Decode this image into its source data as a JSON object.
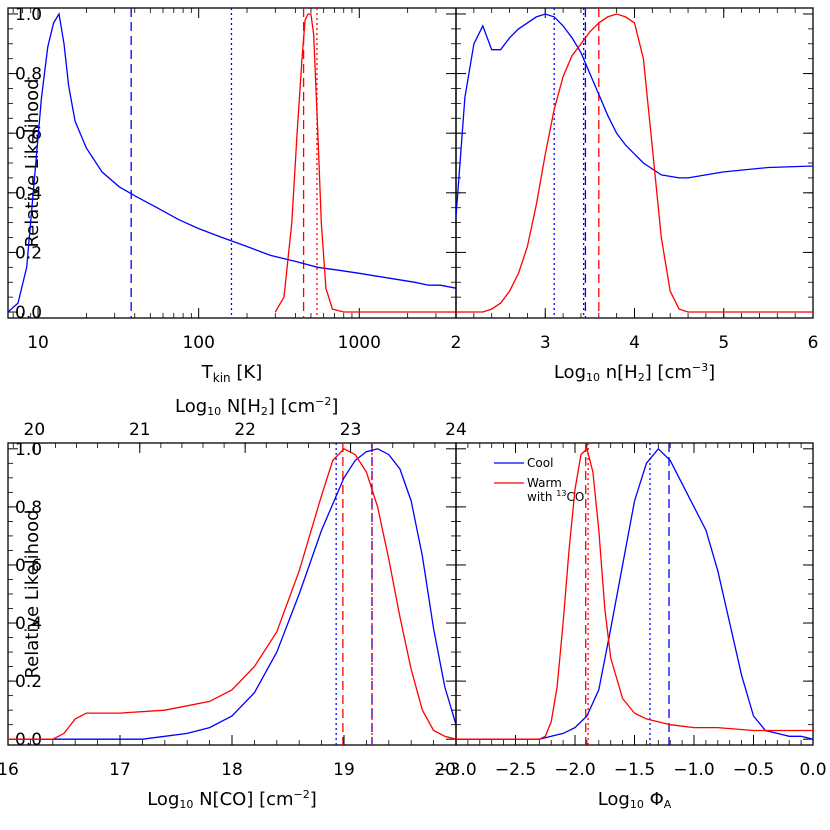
{
  "chart_data": [
    {
      "type": "line",
      "xscale": "log",
      "xlim": [
        6.5,
        4000
      ],
      "ylim": [
        -0.02,
        1.02
      ],
      "ylabel": "Relative Likelihood",
      "xlabel_main": "T",
      "xlabel_sub": "kin",
      "xlabel_unit": "[K]",
      "xticks": [
        10,
        100,
        1000
      ],
      "xtick_labels": [
        "10",
        "100",
        "1000"
      ],
      "yticks": [
        0.0,
        0.2,
        0.4,
        0.6,
        0.8,
        1.0
      ],
      "ytick_labels": [
        "0.0",
        "0.2",
        "0.4",
        "0.6",
        "0.8",
        "1.0"
      ],
      "series": [
        {
          "color": "#0000ff",
          "x": [
            6.5,
            7.5,
            8.5,
            9.5,
            10.5,
            11.5,
            12.5,
            13.5,
            14.5,
            15.5,
            17,
            20,
            25,
            32,
            40,
            55,
            75,
            100,
            140,
            200,
            280,
            400,
            550,
            750,
            1000,
            1300,
            1700,
            2200,
            2700,
            3200,
            4000
          ],
          "y": [
            0.0,
            0.03,
            0.15,
            0.45,
            0.72,
            0.89,
            0.97,
            1.0,
            0.9,
            0.76,
            0.64,
            0.55,
            0.47,
            0.42,
            0.39,
            0.35,
            0.31,
            0.28,
            0.25,
            0.22,
            0.19,
            0.17,
            0.15,
            0.14,
            0.13,
            0.12,
            0.11,
            0.1,
            0.09,
            0.09,
            0.08
          ]
        },
        {
          "color": "#ff0000",
          "x": [
            300,
            340,
            380,
            410,
            440,
            460,
            480,
            500,
            520,
            550,
            580,
            620,
            680,
            800,
            1000,
            4000
          ],
          "y": [
            0.0,
            0.05,
            0.3,
            0.6,
            0.85,
            0.98,
            1.0,
            1.0,
            0.93,
            0.62,
            0.3,
            0.08,
            0.01,
            0.0,
            0.0,
            0.0
          ]
        }
      ],
      "vlines": [
        {
          "x": 38,
          "color": "#0000ff",
          "style": "dashed"
        },
        {
          "x": 160,
          "color": "#0000ff",
          "style": "dotted"
        },
        {
          "x": 450,
          "color": "#ff0000",
          "style": "dashed"
        },
        {
          "x": 545,
          "color": "#ff0000",
          "style": "dotted"
        }
      ]
    },
    {
      "type": "line",
      "xscale": "linear",
      "xlim": [
        2.0,
        6.0
      ],
      "ylim": [
        -0.02,
        1.02
      ],
      "xlabel_main": "Log",
      "xlabel_sub": "10",
      "xlabel_rest": " n[H",
      "xlabel_sub2": "2",
      "xlabel_unit": "] [cm",
      "xlabel_sup": "−3",
      "xlabel_end": "]",
      "xticks": [
        2,
        3,
        4,
        5,
        6
      ],
      "xtick_labels": [
        "2",
        "3",
        "4",
        "5",
        "6"
      ],
      "series": [
        {
          "color": "#0000ff",
          "x": [
            2.0,
            2.1,
            2.2,
            2.3,
            2.4,
            2.5,
            2.6,
            2.7,
            2.8,
            2.9,
            3.0,
            3.1,
            3.2,
            3.3,
            3.4,
            3.5,
            3.6,
            3.7,
            3.8,
            3.9,
            4.0,
            4.1,
            4.2,
            4.3,
            4.4,
            4.5,
            4.6,
            4.8,
            5.0,
            5.5,
            6.0
          ],
          "y": [
            0.32,
            0.72,
            0.9,
            0.96,
            0.88,
            0.88,
            0.92,
            0.95,
            0.97,
            0.99,
            1.0,
            0.99,
            0.96,
            0.92,
            0.87,
            0.8,
            0.73,
            0.66,
            0.6,
            0.56,
            0.53,
            0.5,
            0.48,
            0.46,
            0.455,
            0.45,
            0.45,
            0.46,
            0.47,
            0.485,
            0.49
          ]
        },
        {
          "color": "#ff0000",
          "x": [
            2.0,
            2.3,
            2.4,
            2.5,
            2.6,
            2.7,
            2.8,
            2.9,
            3.0,
            3.1,
            3.2,
            3.3,
            3.4,
            3.5,
            3.6,
            3.7,
            3.8,
            3.9,
            4.0,
            4.1,
            4.2,
            4.3,
            4.4,
            4.5,
            4.6,
            6.0
          ],
          "y": [
            0.0,
            0.0,
            0.01,
            0.03,
            0.07,
            0.13,
            0.22,
            0.36,
            0.53,
            0.68,
            0.79,
            0.86,
            0.9,
            0.94,
            0.97,
            0.99,
            1.0,
            0.99,
            0.97,
            0.85,
            0.55,
            0.25,
            0.07,
            0.01,
            0.0,
            0.0
          ]
        }
      ],
      "vlines": [
        {
          "x": 3.1,
          "color": "#0000ff",
          "style": "dotted"
        },
        {
          "x": 3.45,
          "color": "#0000ff",
          "style": "dashed"
        },
        {
          "x": 3.43,
          "color": "#0000ff",
          "style": "dotted"
        },
        {
          "x": 3.6,
          "color": "#ff0000",
          "style": "dashed"
        }
      ]
    },
    {
      "type": "line",
      "xscale": "linear",
      "xlim": [
        16.0,
        20.0
      ],
      "ylim": [
        -0.02,
        1.02
      ],
      "ylabel": "Relative Likelihood",
      "xlabel_main": "Log",
      "xlabel_sub": "10",
      "xlabel_rest": " N[CO] [cm",
      "xlabel_sup": "−2",
      "xlabel_end": "]",
      "xticks": [
        16,
        17,
        18,
        19,
        20
      ],
      "xtick_labels": [
        "16",
        "17",
        "18",
        "19",
        "20"
      ],
      "top_axis": {
        "label_main": "Log",
        "label_sub": "10",
        "label_rest": " N[H",
        "label_sub2": "2",
        "label_unit": "] [cm",
        "label_sup": "−2",
        "label_end": "]",
        "xlim": [
          19.75,
          24.0
        ],
        "ticks": [
          20,
          21,
          22,
          23,
          24
        ],
        "tick_labels": [
          "20",
          "21",
          "22",
          "23",
          "24"
        ]
      },
      "series": [
        {
          "color": "#0000ff",
          "x": [
            16.0,
            17.2,
            17.4,
            17.6,
            17.8,
            18.0,
            18.2,
            18.4,
            18.6,
            18.8,
            19.0,
            19.1,
            19.2,
            19.3,
            19.4,
            19.5,
            19.6,
            19.7,
            19.8,
            19.9,
            20.0
          ],
          "y": [
            0.0,
            0.0,
            0.01,
            0.02,
            0.04,
            0.08,
            0.16,
            0.3,
            0.5,
            0.72,
            0.9,
            0.96,
            0.99,
            1.0,
            0.98,
            0.93,
            0.82,
            0.63,
            0.38,
            0.18,
            0.05
          ]
        },
        {
          "color": "#ff0000",
          "x": [
            16.0,
            16.4,
            16.5,
            16.6,
            16.7,
            17.0,
            17.4,
            17.8,
            18.0,
            18.2,
            18.4,
            18.6,
            18.8,
            18.9,
            19.0,
            19.1,
            19.2,
            19.3,
            19.4,
            19.5,
            19.6,
            19.7,
            19.8,
            19.9,
            20.0
          ],
          "y": [
            0.0,
            0.0,
            0.02,
            0.07,
            0.09,
            0.09,
            0.1,
            0.13,
            0.17,
            0.25,
            0.37,
            0.58,
            0.84,
            0.96,
            1.0,
            0.98,
            0.92,
            0.8,
            0.62,
            0.42,
            0.24,
            0.1,
            0.03,
            0.01,
            0.0
          ]
        }
      ],
      "vlines": [
        {
          "x": 18.93,
          "color": "#0000ff",
          "style": "dotted"
        },
        {
          "x": 19.25,
          "color": "#0000ff",
          "style": "dashed"
        },
        {
          "x": 18.99,
          "color": "#ff0000",
          "style": "dashed"
        },
        {
          "x": 19.25,
          "color": "#ff0000",
          "style": "dotted"
        }
      ]
    },
    {
      "type": "line",
      "xscale": "linear",
      "xlim": [
        -3.0,
        0.0
      ],
      "ylim": [
        -0.02,
        1.02
      ],
      "xlabel_main": "Log",
      "xlabel_sub": "10",
      "xlabel_rest": " Φ",
      "xlabel_sub2": "A",
      "xticks": [
        -3.0,
        -2.5,
        -2.0,
        -1.5,
        -1.0,
        -0.5,
        0.0
      ],
      "xtick_labels": [
        "−3.0",
        "−2.5",
        "−2.0",
        "−1.5",
        "−1.0",
        "−0.5",
        "0.0"
      ],
      "legend": {
        "position": "top-left",
        "entries": [
          {
            "label": "Cool",
            "color": "#0000ff"
          },
          {
            "label": "Warm",
            "label2_pre": "with ",
            "label2_sup": "13",
            "label2_post": "CO",
            "color": "#ff0000"
          }
        ]
      },
      "series": [
        {
          "color": "#0000ff",
          "x": [
            -3.0,
            -2.3,
            -2.2,
            -2.1,
            -2.0,
            -1.9,
            -1.8,
            -1.7,
            -1.6,
            -1.5,
            -1.4,
            -1.3,
            -1.2,
            -1.1,
            -1.0,
            -0.9,
            -0.8,
            -0.7,
            -0.6,
            -0.5,
            -0.4,
            -0.3,
            -0.2,
            -0.1,
            0.0
          ],
          "y": [
            0.0,
            0.0,
            0.01,
            0.02,
            0.04,
            0.08,
            0.17,
            0.38,
            0.6,
            0.82,
            0.95,
            1.0,
            0.96,
            0.88,
            0.8,
            0.72,
            0.58,
            0.4,
            0.22,
            0.08,
            0.03,
            0.02,
            0.01,
            0.01,
            0.0
          ]
        },
        {
          "color": "#ff0000",
          "x": [
            -3.0,
            -2.3,
            -2.25,
            -2.2,
            -2.15,
            -2.1,
            -2.05,
            -2.0,
            -1.95,
            -1.9,
            -1.85,
            -1.8,
            -1.75,
            -1.7,
            -1.6,
            -1.5,
            -1.4,
            -1.2,
            -1.0,
            -0.8,
            -0.5,
            -0.3,
            0.0
          ],
          "y": [
            0.0,
            0.0,
            0.01,
            0.06,
            0.18,
            0.4,
            0.65,
            0.86,
            0.98,
            1.0,
            0.92,
            0.72,
            0.45,
            0.28,
            0.14,
            0.09,
            0.07,
            0.05,
            0.04,
            0.04,
            0.03,
            0.03,
            0.03
          ]
        }
      ],
      "vlines": [
        {
          "x": -1.37,
          "color": "#0000ff",
          "style": "dotted"
        },
        {
          "x": -1.21,
          "color": "#0000ff",
          "style": "dashed"
        },
        {
          "x": -1.91,
          "color": "#ff0000",
          "style": "dashed"
        },
        {
          "x": -1.89,
          "color": "#ff0000",
          "style": "dotted"
        }
      ]
    }
  ]
}
